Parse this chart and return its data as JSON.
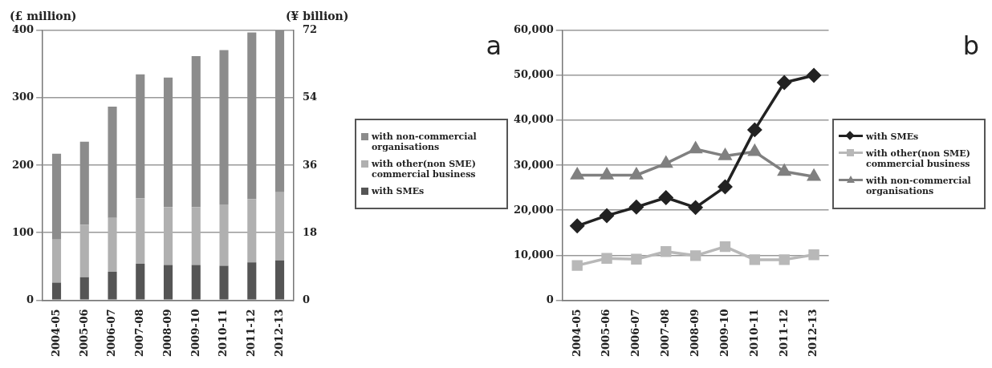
{
  "chart_data": [
    {
      "type": "bar",
      "stacked": true,
      "ylabel": "(£ million)",
      "y2label": "(¥ billion)",
      "annotations": [
        "a"
      ],
      "categories": [
        "2004-05",
        "2005-06",
        "2006-07",
        "2007-08",
        "2008-09",
        "2009-10",
        "2010-11",
        "2011-12",
        "2012-13"
      ],
      "ylim": [
        0,
        400
      ],
      "yticks": [
        0,
        100,
        200,
        300,
        400
      ],
      "y2lim": [
        0,
        72
      ],
      "y2ticks": [
        0,
        18,
        36,
        54,
        72
      ],
      "grid": "y",
      "legend": "right",
      "series": [
        {
          "name": "with SMEs",
          "color": "#555555",
          "values": [
            26,
            34,
            42,
            54,
            52,
            52,
            51,
            56,
            59
          ]
        },
        {
          "name": "with other(non SME) commercial business",
          "color": "#b0b0b0",
          "values": [
            64,
            78,
            80,
            97,
            86,
            86,
            91,
            94,
            101
          ]
        },
        {
          "name": "with non-commercial organisations",
          "color": "#8c8c8c",
          "values": [
            127,
            123,
            165,
            184,
            192,
            224,
            229,
            247,
            240
          ]
        }
      ]
    },
    {
      "type": "line",
      "annotations": [
        "b"
      ],
      "categories": [
        "2004-05",
        "2005-06",
        "2006-07",
        "2007-08",
        "2008-09",
        "2009-10",
        "2010-11",
        "2011-12",
        "2012-13"
      ],
      "ylim": [
        0,
        60000
      ],
      "yticks": [
        {
          "value": 0,
          "label": "0"
        },
        {
          "value": 10000,
          "label": "10,000"
        },
        {
          "value": 20000,
          "label": "20,000"
        },
        {
          "value": 30000,
          "label": "30,000"
        },
        {
          "value": 40000,
          "label": "40,000"
        },
        {
          "value": 50000,
          "label": "50,000"
        },
        {
          "value": 60000,
          "label": "60,000"
        }
      ],
      "grid": "y",
      "legend": "right",
      "line_style": "solid",
      "series": [
        {
          "name": "with SMEs",
          "color": "#222222",
          "marker": "diamond",
          "values": [
            16500,
            18800,
            20700,
            22800,
            20600,
            25200,
            37900,
            48400,
            50000
          ]
        },
        {
          "name": "with other(non SME) commercial business",
          "color": "#b8b8b8",
          "marker": "square",
          "values": [
            7700,
            9300,
            9100,
            10800,
            9900,
            11900,
            9000,
            9000,
            10100
          ]
        },
        {
          "name": "with non-commercial organisations",
          "color": "#808080",
          "marker": "triangle",
          "values": [
            27800,
            27800,
            27800,
            30400,
            33600,
            32100,
            33000,
            28600,
            27500
          ]
        }
      ]
    }
  ]
}
